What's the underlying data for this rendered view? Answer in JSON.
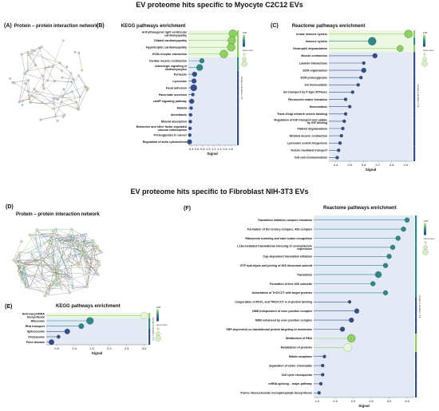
{
  "headings": {
    "top": "EV proteome hits specific to Myocyte C2C12 EVs",
    "bottom": "EV proteome hits specific to Fibroblast NIH-3T3 EVs"
  },
  "panels": {
    "A": {
      "letter": "(A)",
      "title": "Protein – protein interaction network"
    },
    "B": {
      "letter": "(B)",
      "title": "KEGG pathways enrichment"
    },
    "C": {
      "letter": "(C)",
      "title": "Reactome pathways enrichment"
    },
    "D": {
      "letter": "(D)",
      "title": "Protein – protein interaction network"
    },
    "E": {
      "letter": "(E)",
      "title": "KEGG pathways enrichment"
    },
    "F": {
      "letter": "(F)",
      "title": "Reactome pathways enrichment"
    }
  },
  "legend": {
    "fdr_title": "FDR",
    "count_title": "Gene count",
    "group_label": "Groups at similarity ≥ 0.8"
  },
  "colors": {
    "green": "#8bd35c",
    "teal": "#2a8a8a",
    "navy": "#2f4d8f",
    "greenband": "#edf8e2",
    "blueband": "#e3eaf6"
  },
  "chart_data": [
    {
      "id": "B",
      "type": "scatter",
      "title": "KEGG pathways enrichment",
      "xlabel": "Signal",
      "xlim": [
        0.3,
        2.0
      ],
      "xticks": [
        0.4,
        0.6,
        0.8,
        1.0,
        1.2,
        1.4,
        1.6,
        1.8
      ],
      "categories": [
        "Arrhythmogenic right ventricular cardiomyopathy",
        "Dilated cardiomyopathy",
        "Hypertrophic cardiomyopathy",
        "ECM-receptor interaction",
        "Cardiac muscle contraction",
        "Adrenergic signaling in cardiomyocytes",
        "Pertussis",
        "Lysosome",
        "Focal adhesion",
        "Pancreatic secretion",
        "cAMP signaling pathway",
        "Malaria",
        "Amoebiasis",
        "Mineral absorption",
        "Endocrine and other factor-regulated calcium reabsorption",
        "Proteoglycans in cancer",
        "Regulation of actin cytoskeleton"
      ],
      "values": [
        1.88,
        1.84,
        1.82,
        1.56,
        0.78,
        0.7,
        0.52,
        0.5,
        0.49,
        0.46,
        0.42,
        0.4,
        0.38,
        0.37,
        0.36,
        0.35,
        0.34
      ],
      "colors": [
        "green",
        "green",
        "green",
        "green",
        "teal",
        "teal",
        "navy",
        "navy",
        "navy",
        "navy",
        "navy",
        "navy",
        "navy",
        "navy",
        "navy",
        "navy",
        "navy"
      ],
      "sizes": [
        5,
        5,
        5,
        5,
        3,
        4,
        3,
        3,
        4,
        2,
        3,
        2,
        2,
        2,
        2,
        2,
        3
      ],
      "green_rows": 4
    },
    {
      "id": "C",
      "type": "scatter",
      "title": "Reactome pathways enrichment",
      "xlabel": "Signal",
      "xlim": [
        0.35,
        0.95
      ],
      "xticks": [
        0.4,
        0.5,
        0.6,
        0.7,
        0.8,
        0.9
      ],
      "categories": [
        "Innate immune system",
        "Immune system",
        "Neutrophil degranulation",
        "Muscle contraction",
        "Laminin interactions",
        "ECM organisation",
        "ECM proteoglycans",
        "Ion homeostasis",
        "Ion transport by P-type ATPases",
        "Fibronectin matrix formation",
        "Homeostasis",
        "Trans-Golgi network vesicle budding",
        "Regulation of IGF transport and uptake by IGF binding",
        "Platelet degranulation",
        "Striated muscle contraction",
        "Lysosome vesicle biogenesis",
        "Vesicle-mediated transport",
        "Cell-cell communication"
      ],
      "values": [
        0.92,
        0.66,
        0.86,
        0.68,
        0.6,
        0.6,
        0.58,
        0.56,
        0.52,
        0.47,
        0.5,
        0.47,
        0.46,
        0.45,
        0.44,
        0.43,
        0.42,
        0.41
      ],
      "colors": [
        "green",
        "teal",
        "green",
        "navy",
        "navy",
        "navy",
        "navy",
        "navy",
        "navy",
        "navy",
        "navy",
        "navy",
        "navy",
        "navy",
        "navy",
        "navy",
        "navy",
        "navy"
      ],
      "sizes": [
        5,
        5,
        4,
        3,
        2,
        3,
        2,
        2,
        2,
        2,
        2,
        2,
        2,
        2,
        2,
        2,
        2,
        2
      ],
      "green_rows": 3
    },
    {
      "id": "E",
      "type": "scatter",
      "title": "KEGG pathways enrichment",
      "xlabel": "Signal",
      "xlim": [
        0.2,
        3.1
      ],
      "xticks": [
        0.5,
        1.0,
        1.5,
        2.0,
        2.5,
        3.0
      ],
      "categories": [
        "Aminoacyl-tRNA biosynthesis",
        "Ribosome",
        "RNA transport",
        "Spliceosome",
        "Proteasome",
        "Prion disease"
      ],
      "values": [
        3.0,
        1.45,
        1.2,
        0.8,
        0.55,
        0.35
      ],
      "colors": [
        "green",
        "teal",
        "teal",
        "navy",
        "navy",
        "navy"
      ],
      "sizes": [
        4,
        4,
        3,
        3,
        2,
        3
      ],
      "hollow": [
        true,
        false,
        false,
        false,
        false,
        false
      ],
      "green_rows": 1
    },
    {
      "id": "F",
      "type": "scatter",
      "title": "Reactome pathways enrichment",
      "xlabel": "Signal",
      "xlim": [
        0.9,
        3.7
      ],
      "xticks": [
        1.0,
        1.5,
        2.0,
        2.5,
        3.0,
        3.5
      ],
      "categories": [
        "Translation initiation complex formation",
        "Formation of the ternary complex, 43S complex",
        "Ribosomal scanning and start codon recognition",
        "L13a-mediated translational silencing of ceruloplasmin expression",
        "Cap-dependent translation initiation",
        "GTP hydrolysis and joining of 60S ribosomal subunit",
        "Translation",
        "Formation of free 40S subunits",
        "Association of TriC/CCT with target proteins",
        "Cooperation of PDCL and TRiC/CCT in G-protein binding",
        "NMD independent of exon junction complex",
        "NMD enhanced by exon junction complex",
        "SRP-dependent co-translational protein targeting to membrane",
        "Metabolism of RNA",
        "Metabolism of proteins",
        "Mitotic anaphase",
        "Separation of sister chromatids",
        "Cell cycle checkpoints",
        "mRNA splicing – major pathway",
        "Purine ribonucleoside monophosphate biosynthesis"
      ],
      "values": [
        3.5,
        3.4,
        3.25,
        3.1,
        3.0,
        2.9,
        2.7,
        2.55,
        2.9,
        1.9,
        2.1,
        1.95,
        1.7,
        1.95,
        1.85,
        1.2,
        1.15,
        1.15,
        1.1,
        1.05
      ],
      "colors": [
        "teal",
        "teal",
        "teal",
        "teal",
        "teal",
        "teal",
        "teal",
        "teal",
        "teal",
        "navy",
        "navy",
        "navy",
        "navy",
        "green",
        "green",
        "navy",
        "navy",
        "navy",
        "navy",
        "navy"
      ],
      "sizes": [
        3,
        3,
        3,
        3,
        3,
        3,
        4,
        3,
        3,
        2,
        3,
        3,
        3,
        5,
        5,
        2,
        2,
        2,
        2,
        2
      ],
      "hollow": [
        false,
        false,
        false,
        false,
        false,
        false,
        false,
        false,
        false,
        false,
        false,
        false,
        false,
        false,
        true,
        false,
        false,
        false,
        false,
        false
      ],
      "green_rows": 0
    }
  ]
}
